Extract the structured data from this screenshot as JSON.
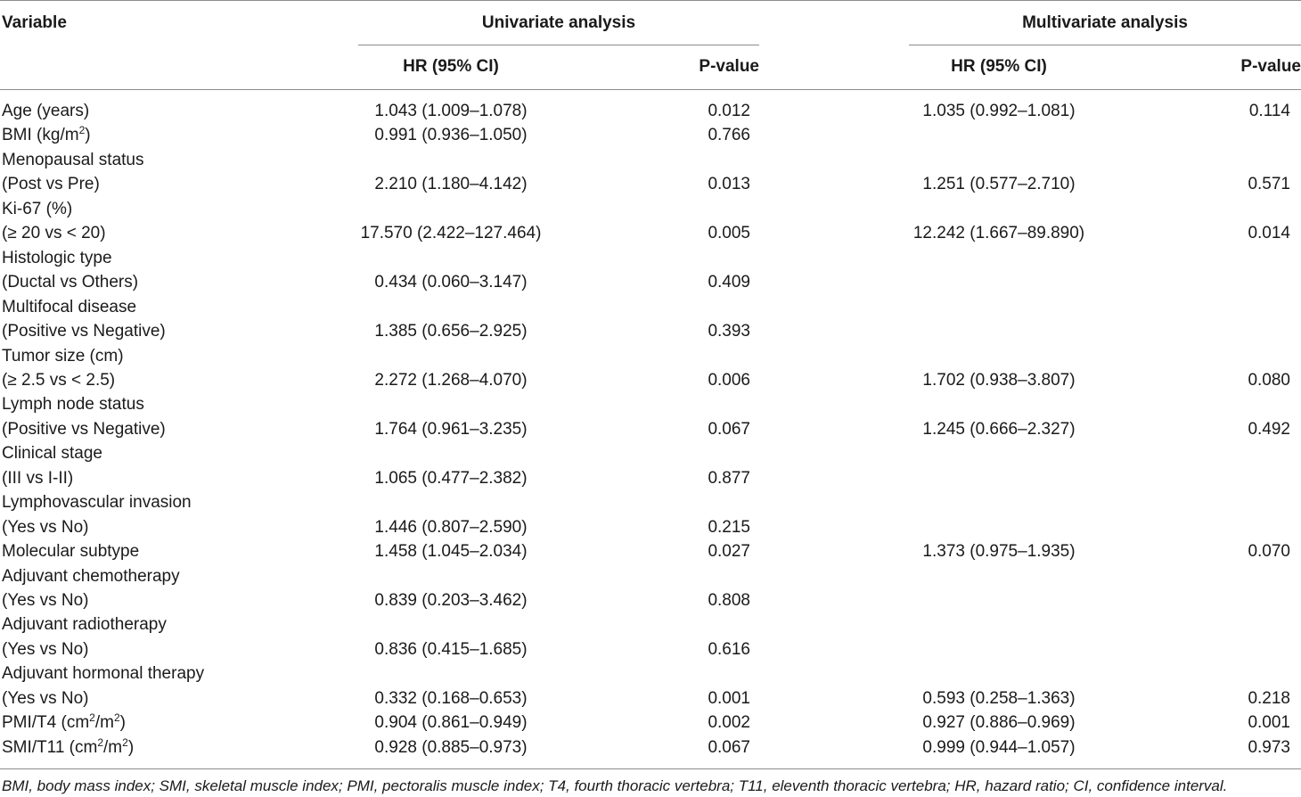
{
  "headers": {
    "variable": "Variable",
    "univariate": "Univariate analysis",
    "multivariate": "Multivariate analysis",
    "hr": "HR (95% CI)",
    "pvalue": "P-value"
  },
  "rows": [
    {
      "label": "Age (years)",
      "uni_hr": "1.043 (1.009–1.078)",
      "uni_p": "0.012",
      "multi_hr": "1.035 (0.992–1.081)",
      "multi_p": "0.114"
    },
    {
      "label": "BMI (kg/m",
      "sup": "2",
      "label_end": ")",
      "uni_hr": "0.991 (0.936–1.050)",
      "uni_p": "0.766",
      "multi_hr": "",
      "multi_p": ""
    },
    {
      "label": "Menopausal status",
      "uni_hr": "",
      "uni_p": "",
      "multi_hr": "",
      "multi_p": ""
    },
    {
      "label": "(Post vs Pre)",
      "uni_hr": "2.210 (1.180–4.142)",
      "uni_p": "0.013",
      "multi_hr": "1.251 (0.577–2.710)",
      "multi_p": "0.571"
    },
    {
      "label": "Ki-67 (%)",
      "uni_hr": "",
      "uni_p": "",
      "multi_hr": "",
      "multi_p": ""
    },
    {
      "label": "(≥ 20 vs < 20)",
      "uni_hr": "17.570 (2.422–127.464)",
      "uni_p": "0.005",
      "multi_hr": "12.242 (1.667–89.890)",
      "multi_p": "0.014"
    },
    {
      "label": "Histologic type",
      "uni_hr": "",
      "uni_p": "",
      "multi_hr": "",
      "multi_p": ""
    },
    {
      "label": "(Ductal vs Others)",
      "uni_hr": "0.434 (0.060–3.147)",
      "uni_p": "0.409",
      "multi_hr": "",
      "multi_p": ""
    },
    {
      "label": "Multifocal disease",
      "uni_hr": "",
      "uni_p": "",
      "multi_hr": "",
      "multi_p": ""
    },
    {
      "label": "(Positive vs Negative)",
      "uni_hr": "1.385 (0.656–2.925)",
      "uni_p": "0.393",
      "multi_hr": "",
      "multi_p": ""
    },
    {
      "label": "Tumor size (cm)",
      "uni_hr": "",
      "uni_p": "",
      "multi_hr": "",
      "multi_p": ""
    },
    {
      "label": "(≥ 2.5 vs < 2.5)",
      "uni_hr": "2.272 (1.268–4.070)",
      "uni_p": "0.006",
      "multi_hr": "1.702 (0.938–3.807)",
      "multi_p": "0.080"
    },
    {
      "label": "Lymph node status",
      "uni_hr": "",
      "uni_p": "",
      "multi_hr": "",
      "multi_p": ""
    },
    {
      "label": " (Positive vs Negative)",
      "uni_hr": "1.764 (0.961–3.235)",
      "uni_p": "0.067",
      "multi_hr": "1.245 (0.666–2.327)",
      "multi_p": "0.492"
    },
    {
      "label": "Clinical stage",
      "uni_hr": "",
      "uni_p": "",
      "multi_hr": "",
      "multi_p": ""
    },
    {
      "label": "(III vs I-II)",
      "uni_hr": "1.065 (0.477–2.382)",
      "uni_p": "0.877",
      "multi_hr": "",
      "multi_p": ""
    },
    {
      "label": "Lymphovascular invasion",
      "uni_hr": "",
      "uni_p": "",
      "multi_hr": "",
      "multi_p": ""
    },
    {
      "label": "(Yes vs No)",
      "uni_hr": "1.446 (0.807–2.590)",
      "uni_p": "0.215",
      "multi_hr": "",
      "multi_p": ""
    },
    {
      "label": "Molecular subtype",
      "uni_hr": "1.458 (1.045–2.034)",
      "uni_p": "0.027",
      "multi_hr": "1.373 (0.975–1.935)",
      "multi_p": "0.070"
    },
    {
      "label": "Adjuvant chemotherapy",
      "uni_hr": "",
      "uni_p": "",
      "multi_hr": "",
      "multi_p": ""
    },
    {
      "label": "(Yes vs No)",
      "uni_hr": "0.839 (0.203–3.462)",
      "uni_p": "0.808",
      "multi_hr": "",
      "multi_p": ""
    },
    {
      "label": "Adjuvant radiotherapy",
      "uni_hr": "",
      "uni_p": "",
      "multi_hr": "",
      "multi_p": ""
    },
    {
      "label": "(Yes vs No)",
      "uni_hr": "0.836 (0.415–1.685)",
      "uni_p": "0.616",
      "multi_hr": "",
      "multi_p": ""
    },
    {
      "label": "Adjuvant hormonal therapy",
      "uni_hr": "",
      "uni_p": "",
      "multi_hr": "",
      "multi_p": ""
    },
    {
      "label": "(Yes vs No)",
      "uni_hr": "0.332 (0.168–0.653)",
      "uni_p": "0.001",
      "multi_hr": "0.593 (0.258–1.363)",
      "multi_p": "0.218"
    },
    {
      "label": "PMI/T4 (cm",
      "sup": "2",
      "label_end": "/m",
      "sup2": "2",
      "label_end2": ")",
      "uni_hr": "0.904 (0.861–0.949)",
      "uni_p": "0.002",
      "multi_hr": "0.927 (0.886–0.969)",
      "multi_p": "0.001"
    },
    {
      "label": "SMI/T11 (cm",
      "sup": "2",
      "label_end": "/m",
      "sup2": "2",
      "label_end2": ")",
      "uni_hr": "0.928 (0.885–0.973)",
      "uni_p": "0.067",
      "multi_hr": "0.999 (0.944–1.057)",
      "multi_p": "0.973"
    }
  ],
  "footnote": "BMI, body mass index; SMI, skeletal muscle index; PMI, pectoralis muscle index; T4, fourth thoracic vertebra; T11, eleventh thoracic vertebra; HR, hazard ratio; CI, confidence interval."
}
